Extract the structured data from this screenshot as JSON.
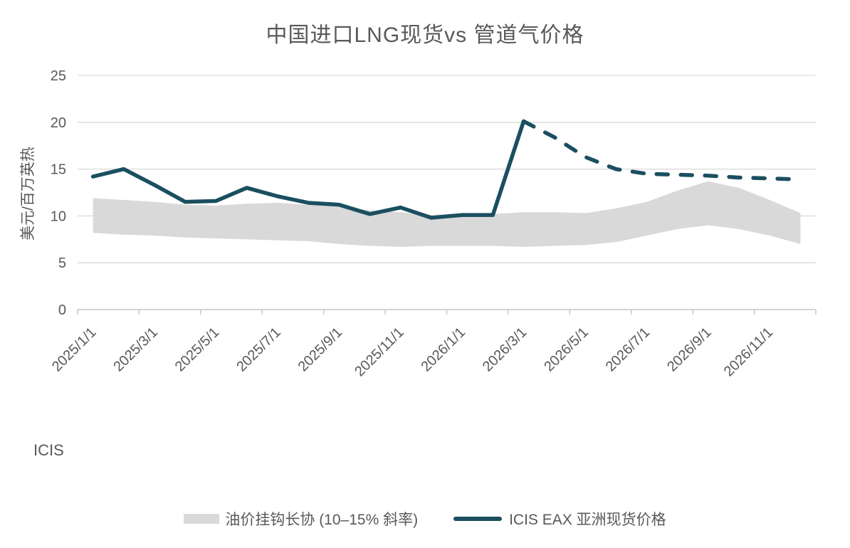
{
  "chart_data": {
    "type": "line",
    "title": "中国进口LNG现货vs 管道气价格",
    "source": "ICIS",
    "xlabel": "",
    "ylabel": "美元/百万英热",
    "ylim": [
      0,
      25
    ],
    "yticks": [
      0,
      5,
      10,
      15,
      20,
      25
    ],
    "grid": "horizontal",
    "legend_position": "bottom",
    "categories": [
      "2025/1/1",
      "2025/2/1",
      "2025/3/1",
      "2025/4/1",
      "2025/5/1",
      "2025/6/1",
      "2025/7/1",
      "2025/8/1",
      "2025/9/1",
      "2025/10/1",
      "2025/11/1",
      "2025/12/1",
      "2026/1/1",
      "2026/2/1",
      "2026/3/1",
      "2026/4/1",
      "2026/5/1",
      "2026/6/1",
      "2026/7/1",
      "2026/8/1",
      "2026/9/1",
      "2026/10/1",
      "2026/11/1",
      "2026/12/1"
    ],
    "xtick_label_every": 2,
    "series": [
      {
        "name": "油价挂钩长协 (10–15% 斜率)",
        "type": "band",
        "color": "#d9d9d9",
        "upper": [
          11.9,
          11.7,
          11.5,
          11.2,
          11.1,
          11.3,
          11.4,
          11.2,
          11.0,
          10.6,
          10.4,
          10.1,
          10.2,
          10.2,
          10.4,
          10.4,
          10.3,
          10.8,
          11.5,
          12.7,
          13.7,
          13.0,
          11.7,
          10.3
        ],
        "lower": [
          8.2,
          8.0,
          7.9,
          7.7,
          7.6,
          7.5,
          7.4,
          7.3,
          7.0,
          6.8,
          6.7,
          6.8,
          6.8,
          6.8,
          6.7,
          6.8,
          6.9,
          7.2,
          7.9,
          8.6,
          9.0,
          8.6,
          7.9,
          7.0
        ]
      },
      {
        "name": "ICIS EAX 亚洲现货价格",
        "type": "line",
        "color": "#1a4f60",
        "values": [
          14.2,
          15.0,
          13.3,
          11.5,
          11.6,
          13.0,
          12.1,
          11.4,
          11.2,
          10.2,
          10.9,
          9.8,
          10.1,
          10.1,
          20.1,
          18.4,
          16.3,
          15.0,
          14.5,
          14.4,
          14.3,
          14.1,
          14.0,
          13.9
        ],
        "dash_from_index": 14
      }
    ],
    "colors": {
      "axis": "#c6c6c6",
      "gridline": "#d9d9d9",
      "text": "#595959",
      "line": "#1a4f60",
      "band": "#d9d9d9"
    }
  }
}
